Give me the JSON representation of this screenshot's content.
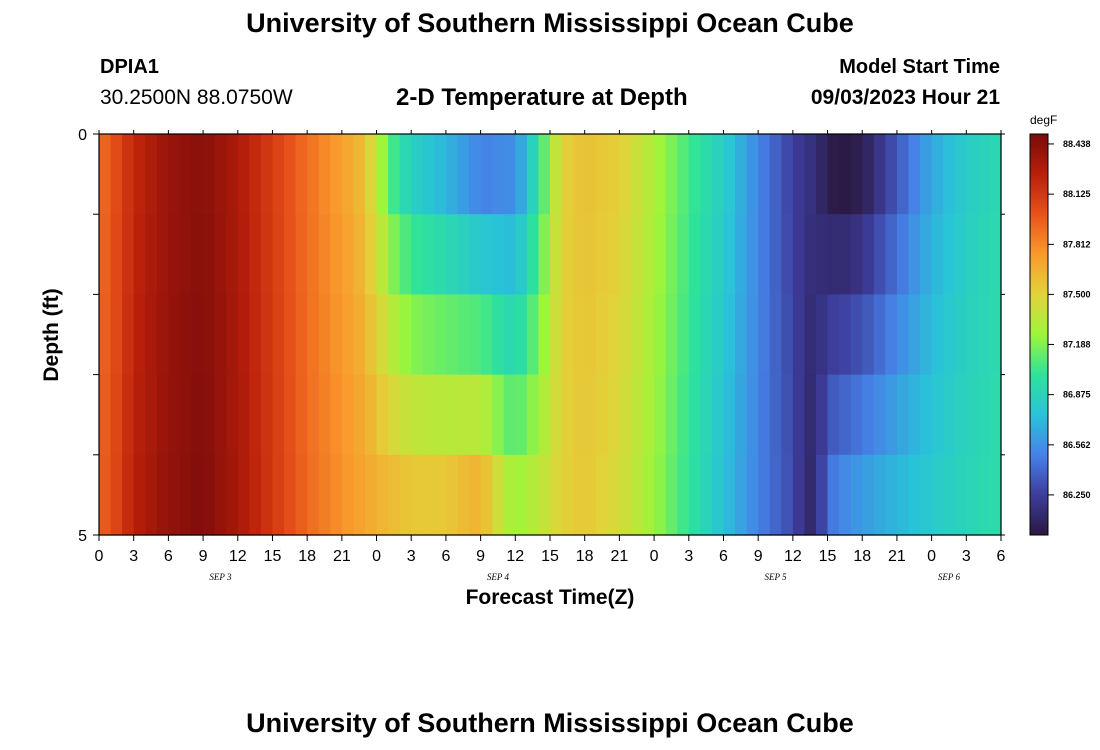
{
  "header": {
    "title": "University of Southern Mississippi Ocean Cube",
    "station": "DPIA1",
    "coords": "30.2500N  88.0750W",
    "subtitle": "2-D Temperature at Depth",
    "model_start_label": "Model Start Time",
    "model_start_value": "09/03/2023 Hour 21"
  },
  "footer": {
    "title": "University of Southern Mississippi Ocean Cube"
  },
  "chart_data": {
    "type": "heatmap",
    "xlabel": "Forecast Time(Z)",
    "ylabel": "Depth (ft)",
    "x_tick_labels": [
      "0",
      "3",
      "6",
      "9",
      "12",
      "15",
      "18",
      "21",
      "0",
      "3",
      "6",
      "9",
      "12",
      "15",
      "18",
      "21",
      "0",
      "3",
      "6",
      "9",
      "12",
      "15",
      "18",
      "21",
      "0",
      "3",
      "6"
    ],
    "date_labels": [
      {
        "label": "SEP 3",
        "hour_index": 10.5
      },
      {
        "label": "SEP 4",
        "hour_index": 34.5
      },
      {
        "label": "SEP 5",
        "hour_index": 58.5
      },
      {
        "label": "SEP 6",
        "hour_index": 73.5
      }
    ],
    "x_hours": [
      0,
      78
    ],
    "y_tick_labels": [
      "0",
      "5"
    ],
    "y_range": [
      0,
      5
    ],
    "colorbar": {
      "unit": "degF",
      "min": 86.0,
      "max": 88.5,
      "tick_labels": [
        "88.438",
        "88.125",
        "87.812",
        "87.500",
        "87.188",
        "86.875",
        "86.562",
        "86.250"
      ],
      "tick_values": [
        88.438,
        88.125,
        87.812,
        87.5,
        87.188,
        86.875,
        86.562,
        86.25
      ],
      "colors": [
        "#2a1840",
        "#3d3d9c",
        "#4682e8",
        "#29c3d8",
        "#2de39a",
        "#9ef53a",
        "#e2d33a",
        "#fa9a2c",
        "#e8521a",
        "#b81f0a",
        "#7a0b0b"
      ]
    },
    "depth_layers": [
      0,
      1,
      2,
      3,
      4
    ],
    "surface_profile": [
      {
        "h": 0,
        "v": 87.9
      },
      {
        "h": 1,
        "v": 87.98
      },
      {
        "h": 3,
        "v": 88.2
      },
      {
        "h": 6,
        "v": 88.38
      },
      {
        "h": 9,
        "v": 88.44
      },
      {
        "h": 12,
        "v": 88.3
      },
      {
        "h": 15,
        "v": 88.1
      },
      {
        "h": 18,
        "v": 87.9
      },
      {
        "h": 21,
        "v": 87.72
      },
      {
        "h": 22.5,
        "v": 87.62
      },
      {
        "h": 24,
        "v": 87.4
      },
      {
        "h": 25,
        "v": 87.1
      },
      {
        "h": 27,
        "v": 86.85
      },
      {
        "h": 30,
        "v": 86.7
      },
      {
        "h": 33,
        "v": 86.5
      },
      {
        "h": 36,
        "v": 86.55
      },
      {
        "h": 37,
        "v": 86.75
      },
      {
        "h": 38,
        "v": 86.98
      },
      {
        "h": 39,
        "v": 87.25
      },
      {
        "h": 40,
        "v": 87.5
      },
      {
        "h": 42,
        "v": 87.58
      },
      {
        "h": 45,
        "v": 87.52
      },
      {
        "h": 48,
        "v": 87.3
      },
      {
        "h": 51,
        "v": 87.05
      },
      {
        "h": 54,
        "v": 86.82
      },
      {
        "h": 57,
        "v": 86.52
      },
      {
        "h": 60,
        "v": 86.25
      },
      {
        "h": 62,
        "v": 86.15
      },
      {
        "h": 63,
        "v": 86.05
      },
      {
        "h": 64,
        "v": 86.0
      },
      {
        "h": 66,
        "v": 86.05
      },
      {
        "h": 69,
        "v": 86.35
      },
      {
        "h": 72,
        "v": 86.65
      },
      {
        "h": 75,
        "v": 86.82
      },
      {
        "h": 78,
        "v": 86.92
      }
    ],
    "deep_profile": [
      {
        "h": 0,
        "v": 87.95
      },
      {
        "h": 1,
        "v": 88.0
      },
      {
        "h": 3,
        "v": 88.25
      },
      {
        "h": 6,
        "v": 88.4
      },
      {
        "h": 9,
        "v": 88.47
      },
      {
        "h": 12,
        "v": 88.32
      },
      {
        "h": 15,
        "v": 88.12
      },
      {
        "h": 18,
        "v": 87.92
      },
      {
        "h": 21,
        "v": 87.78
      },
      {
        "h": 24,
        "v": 87.65
      },
      {
        "h": 27,
        "v": 87.55
      },
      {
        "h": 30,
        "v": 87.55
      },
      {
        "h": 33,
        "v": 87.65
      },
      {
        "h": 35,
        "v": 87.35
      },
      {
        "h": 36,
        "v": 87.25
      },
      {
        "h": 38,
        "v": 87.35
      },
      {
        "h": 40,
        "v": 87.5
      },
      {
        "h": 42,
        "v": 87.55
      },
      {
        "h": 45,
        "v": 87.45
      },
      {
        "h": 48,
        "v": 87.25
      },
      {
        "h": 51,
        "v": 87.0
      },
      {
        "h": 54,
        "v": 86.75
      },
      {
        "h": 57,
        "v": 86.5
      },
      {
        "h": 60,
        "v": 86.3
      },
      {
        "h": 61,
        "v": 86.15
      },
      {
        "h": 62,
        "v": 86.1
      },
      {
        "h": 63,
        "v": 86.45
      },
      {
        "h": 66,
        "v": 86.6
      },
      {
        "h": 69,
        "v": 86.7
      },
      {
        "h": 72,
        "v": 86.8
      },
      {
        "h": 75,
        "v": 86.88
      },
      {
        "h": 78,
        "v": 86.95
      }
    ]
  }
}
